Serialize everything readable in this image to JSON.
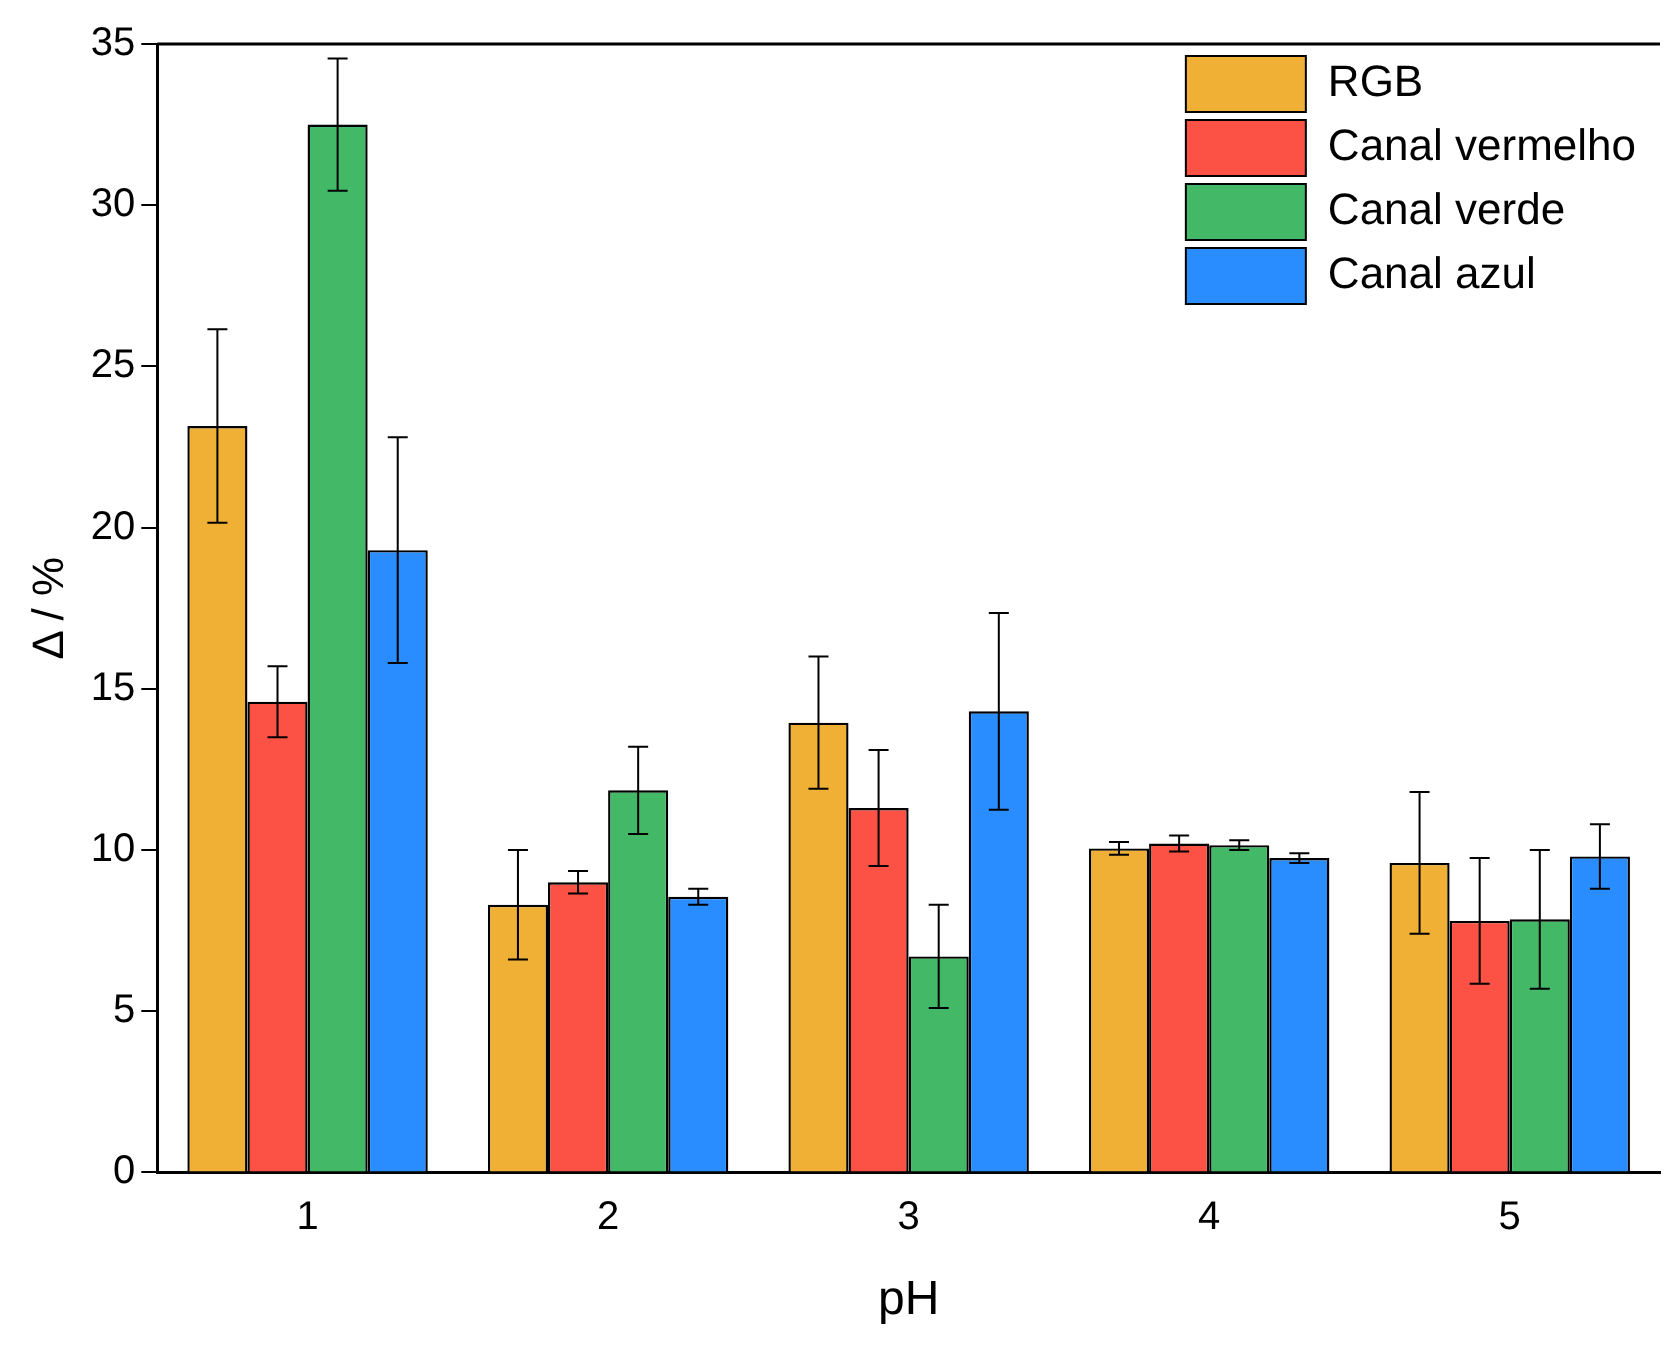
{
  "chart_data": {
    "type": "bar",
    "xlabel": "pH",
    "ylabel": "Δ / %",
    "categories": [
      "1",
      "2",
      "3",
      "4",
      "5"
    ],
    "series": [
      {
        "name": "RGB",
        "color": "#efb035",
        "values": [
          23.15,
          8.3,
          13.95,
          10.05,
          9.6
        ],
        "errors": [
          3.0,
          1.7,
          2.05,
          0.2,
          2.2
        ]
      },
      {
        "name": "Canal vermelho",
        "color": "#fc5245",
        "values": [
          14.6,
          9.0,
          11.3,
          10.2,
          7.8
        ],
        "errors": [
          1.1,
          0.35,
          1.8,
          0.25,
          1.95
        ]
      },
      {
        "name": "Canal verde",
        "color": "#43b968",
        "values": [
          32.5,
          11.85,
          6.7,
          10.15,
          7.85
        ],
        "errors": [
          2.05,
          1.35,
          1.6,
          0.15,
          2.15
        ]
      },
      {
        "name": "Canal azul",
        "color": "#2a8dff",
        "values": [
          19.3,
          8.55,
          14.3,
          9.75,
          9.8
        ],
        "errors": [
          3.5,
          0.25,
          3.05,
          0.15,
          1.0
        ]
      }
    ],
    "ylim": [
      0,
      35
    ],
    "yticks": [
      0,
      5,
      10,
      15,
      20,
      25,
      30,
      35
    ],
    "grid": false,
    "legend": "top right"
  }
}
